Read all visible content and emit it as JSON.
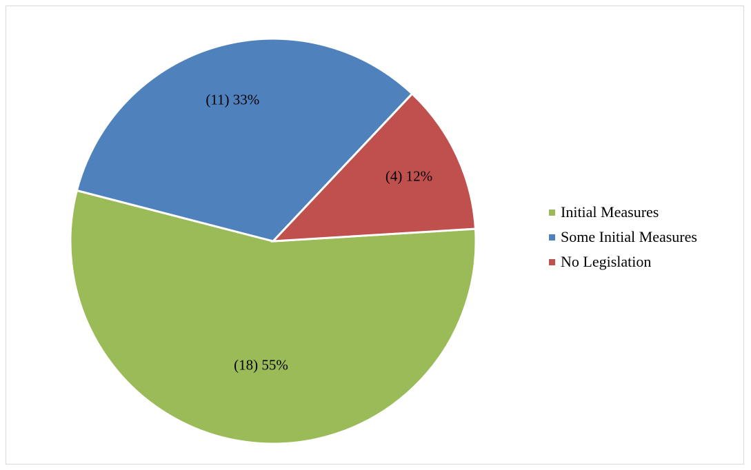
{
  "chart_data": {
    "type": "pie",
    "title": "",
    "slices": [
      {
        "label": "Initial Measures",
        "count": 18,
        "value": 55,
        "data_label": "(18)  55%",
        "color": "#9BBB59"
      },
      {
        "label": "Some Initial Measures",
        "count": 11,
        "value": 33,
        "data_label": "(11)  33%",
        "color": "#4F81BD"
      },
      {
        "label": "No Legislation",
        "count": 4,
        "value": 12,
        "data_label": "(4)  12%",
        "color": "#C0504D"
      }
    ],
    "legend": {
      "position": "right",
      "entries": [
        "Initial Measures",
        "Some Initial Measures",
        "No Legislation"
      ]
    }
  }
}
